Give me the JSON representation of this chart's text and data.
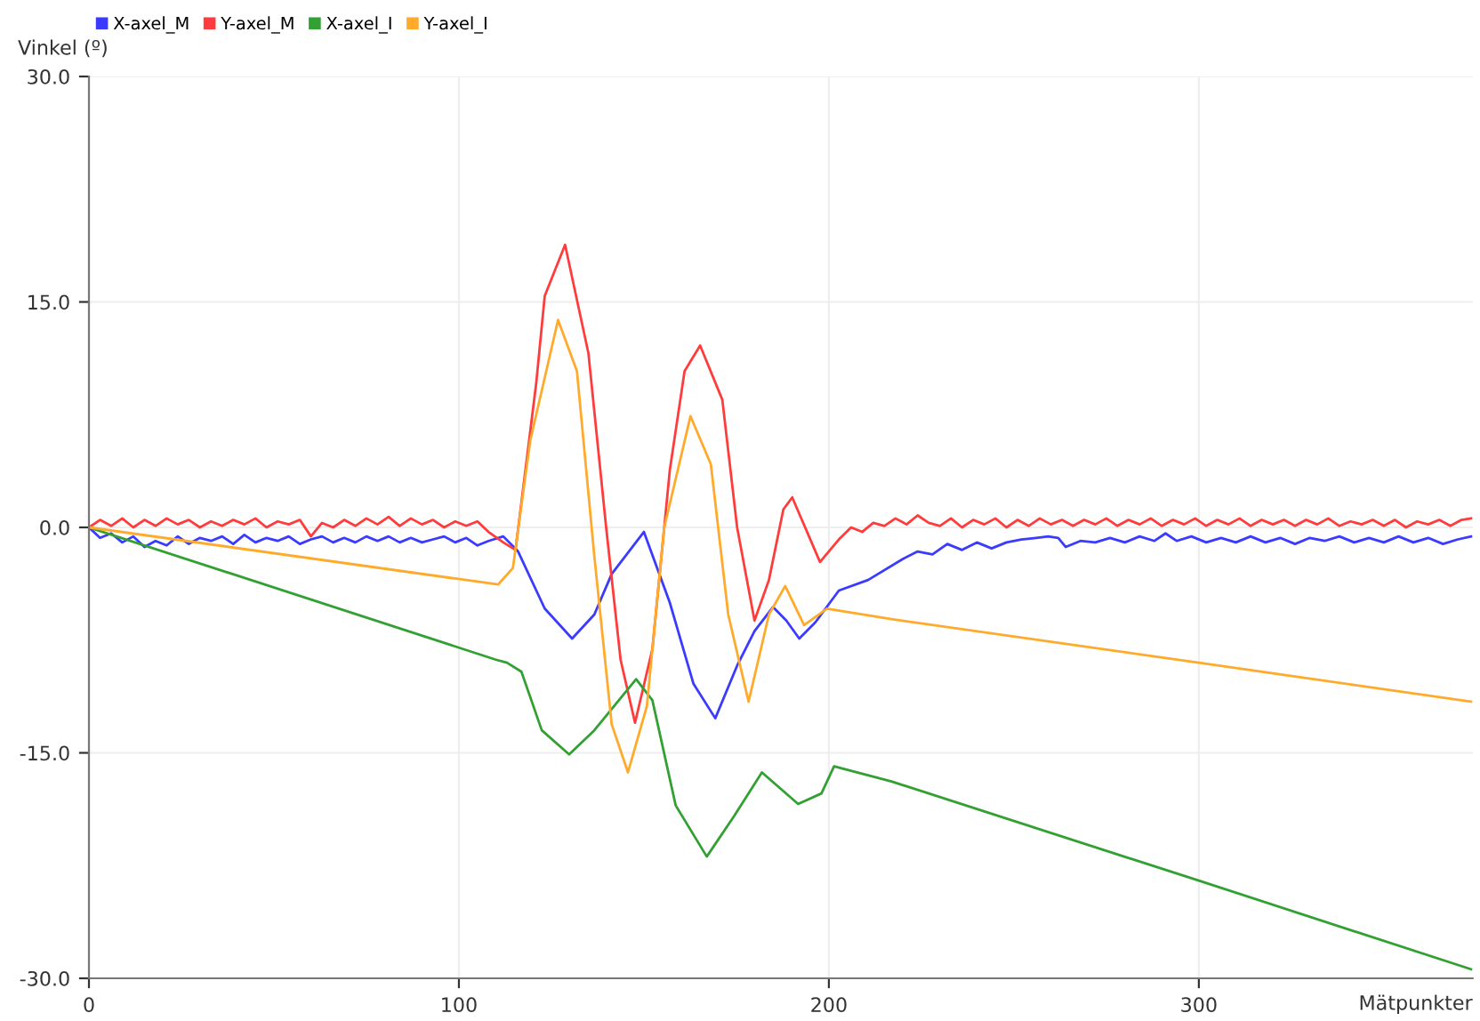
{
  "chart_data": {
    "type": "line",
    "xlabel": "Mätpunkter",
    "ylabel": "Vinkel (º)",
    "xlim": [
      0,
      374
    ],
    "ylim": [
      -30,
      30
    ],
    "xticks": [
      0,
      100,
      200,
      300
    ],
    "yticks": [
      {
        "value": 30,
        "label": "30.0"
      },
      {
        "value": 15,
        "label": "15.0"
      },
      {
        "value": 0,
        "label": "0.0"
      },
      {
        "value": -15,
        "label": "-15.0"
      },
      {
        "value": -30,
        "label": "-30.0"
      }
    ],
    "grid": true,
    "legend": "top left",
    "marker": "none",
    "line_style": "solid",
    "series": [
      {
        "name": "X-axel_M",
        "color": "#3b3bff",
        "x": [
          0,
          3,
          6,
          9,
          12,
          15,
          18,
          21,
          24,
          27,
          30,
          33,
          36,
          39,
          42,
          45,
          48,
          51,
          54,
          57,
          60,
          63,
          66,
          69,
          72,
          75,
          78,
          81,
          84,
          87,
          90,
          93,
          96,
          99,
          102,
          105,
          108,
          112,
          116,
          123.2,
          130.6,
          136.6,
          141.3,
          150,
          157,
          163.4,
          169.3,
          175.2,
          179.9,
          184.9,
          188.5,
          192,
          196.4,
          202.7,
          210.6,
          220,
          224,
          228,
          232,
          236,
          240,
          244,
          248,
          252,
          256,
          259.3,
          262,
          264,
          268,
          272,
          276,
          280,
          284,
          288,
          291,
          294,
          298,
          302,
          306,
          310,
          314,
          318,
          322,
          326,
          330,
          334,
          338,
          342,
          346,
          350,
          354,
          358,
          362,
          366,
          370,
          373.6
        ],
        "values": [
          0,
          -0.7,
          -0.4,
          -1.0,
          -0.6,
          -1.3,
          -0.9,
          -1.2,
          -0.6,
          -1.1,
          -0.7,
          -0.9,
          -0.6,
          -1.1,
          -0.5,
          -1.0,
          -0.7,
          -0.9,
          -0.6,
          -1.1,
          -0.8,
          -0.6,
          -1.0,
          -0.7,
          -1.0,
          -0.6,
          -0.9,
          -0.6,
          -1.0,
          -0.7,
          -1.0,
          -0.8,
          -0.6,
          -1.0,
          -0.7,
          -1.2,
          -0.9,
          -0.6,
          -1.6,
          -5.4,
          -7.4,
          -5.8,
          -3.1,
          -0.3,
          -5.0,
          -10.4,
          -12.7,
          -9.2,
          -6.9,
          -5.3,
          -6.2,
          -7.4,
          -6.3,
          -4.2,
          -3.5,
          -2.1,
          -1.6,
          -1.8,
          -1.1,
          -1.5,
          -1.0,
          -1.4,
          -1.0,
          -0.8,
          -0.7,
          -0.6,
          -0.7,
          -1.3,
          -0.9,
          -1.0,
          -0.7,
          -1.0,
          -0.6,
          -0.9,
          -0.4,
          -0.9,
          -0.6,
          -1.0,
          -0.7,
          -1.0,
          -0.6,
          -1.0,
          -0.7,
          -1.1,
          -0.7,
          -0.9,
          -0.6,
          -1.0,
          -0.7,
          -1.0,
          -0.6,
          -1.0,
          -0.7,
          -1.1,
          -0.8,
          -0.6
        ]
      },
      {
        "name": "Y-axel_M",
        "color": "#ff3b3b",
        "x": [
          0,
          3,
          6,
          9,
          12,
          15,
          18,
          21,
          24,
          27,
          30,
          33,
          36,
          39,
          42,
          45,
          48,
          51,
          54,
          57,
          60,
          63,
          66,
          69,
          72,
          75,
          78,
          81,
          84,
          87,
          90,
          93,
          96,
          99,
          102,
          105,
          108,
          112,
          115.3,
          120.9,
          123.2,
          128.7,
          135,
          139.8,
          143.7,
          147.6,
          152.3,
          157,
          161,
          165.2,
          171.2,
          175.2,
          179.9,
          183.8,
          187.7,
          190.1,
          197.6,
          202.7,
          206,
          209,
          212,
          215,
          218,
          221,
          224,
          227,
          230,
          233,
          236,
          239,
          242,
          245,
          248,
          251,
          254,
          257,
          260,
          263,
          266,
          269,
          272,
          275,
          278,
          281,
          284,
          287,
          290,
          293,
          296,
          299,
          302,
          305,
          308,
          311,
          314,
          317,
          320,
          323,
          326,
          329,
          332,
          335,
          338,
          341,
          344,
          347,
          350,
          353,
          356,
          359,
          362,
          365,
          368,
          371,
          373.6
        ],
        "values": [
          0,
          0.5,
          0.1,
          0.6,
          0.0,
          0.5,
          0.1,
          0.6,
          0.2,
          0.5,
          0.0,
          0.4,
          0.1,
          0.5,
          0.2,
          0.6,
          0.0,
          0.4,
          0.2,
          0.5,
          -0.6,
          0.3,
          0.0,
          0.5,
          0.1,
          0.6,
          0.2,
          0.7,
          0.1,
          0.6,
          0.2,
          0.5,
          0.0,
          0.4,
          0.1,
          0.4,
          -0.3,
          -1.0,
          -1.5,
          9.6,
          15.4,
          18.8,
          11.6,
          0,
          -8.8,
          -13.0,
          -8.1,
          3.8,
          10.4,
          12.1,
          8.5,
          0,
          -6.2,
          -3.5,
          1.2,
          2.0,
          -2.3,
          -0.8,
          0.0,
          -0.3,
          0.3,
          0.1,
          0.6,
          0.2,
          0.8,
          0.3,
          0.1,
          0.6,
          0.0,
          0.5,
          0.2,
          0.6,
          0.0,
          0.5,
          0.1,
          0.6,
          0.2,
          0.5,
          0.1,
          0.5,
          0.2,
          0.6,
          0.1,
          0.5,
          0.2,
          0.6,
          0.1,
          0.5,
          0.2,
          0.6,
          0.1,
          0.5,
          0.2,
          0.6,
          0.1,
          0.5,
          0.2,
          0.5,
          0.1,
          0.5,
          0.2,
          0.6,
          0.1,
          0.4,
          0.2,
          0.5,
          0.1,
          0.5,
          0.0,
          0.4,
          0.2,
          0.5,
          0.1,
          0.5,
          0.6
        ]
      },
      {
        "name": "X-axel_I",
        "color": "#33a033",
        "x": [
          0,
          110,
          113,
          116.9,
          122.4,
          129.8,
          136.6,
          147.9,
          152.3,
          158.6,
          167,
          174.4,
          181.9,
          191.7,
          198,
          201.4,
          216.9,
          300,
          373.6
        ],
        "values": [
          0,
          -8.8,
          -9.0,
          -9.6,
          -13.5,
          -15.1,
          -13.5,
          -10.1,
          -11.5,
          -18.5,
          -21.9,
          -19.2,
          -16.3,
          -18.4,
          -17.7,
          -15.9,
          -16.9,
          -23.5,
          -29.4
        ]
      },
      {
        "name": "Y-axel_I",
        "color": "#ffaa2a",
        "x": [
          0,
          110.6,
          114.6,
          119.3,
          126.8,
          131.9,
          136.6,
          141.3,
          145.7,
          150.8,
          155.5,
          162.6,
          168.1,
          172.8,
          178.3,
          183.8,
          188.2,
          193.3,
          199.5,
          216.9,
          300,
          373.6
        ],
        "values": [
          0,
          -3.8,
          -2.7,
          5.8,
          13.8,
          10.4,
          -1.9,
          -13.1,
          -16.3,
          -11.9,
          0,
          7.4,
          4.2,
          -5.8,
          -11.6,
          -5.8,
          -3.9,
          -6.5,
          -5.4,
          -6.1,
          -9.0,
          -11.6
        ]
      }
    ]
  }
}
